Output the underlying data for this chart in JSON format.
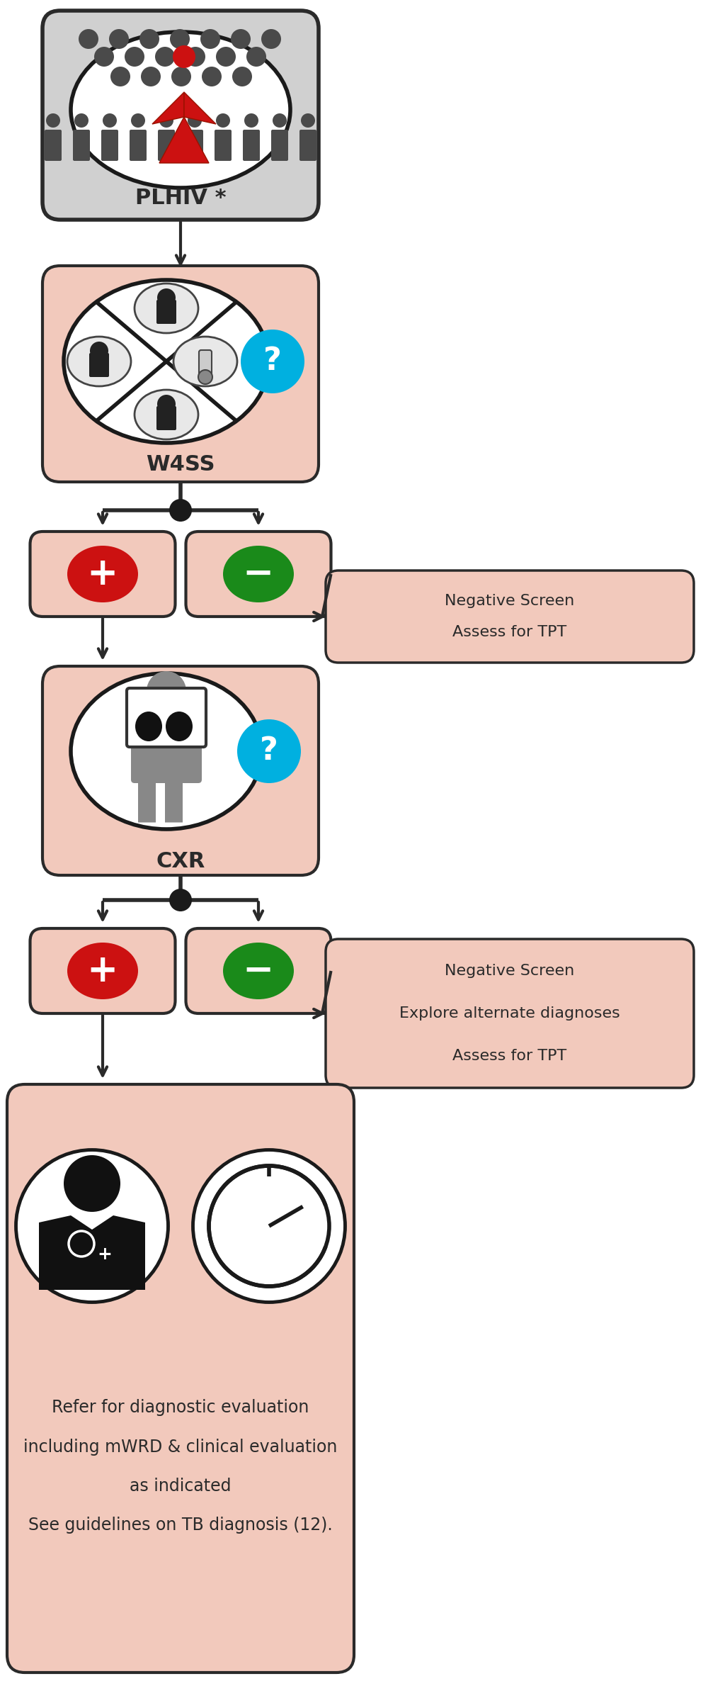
{
  "bg_color": "#ffffff",
  "salmon_box_color": "#f2c9bc",
  "gray_box_color": "#d0d0d0",
  "box_border_color": "#2a2a2a",
  "arrow_color": "#2a2a2a",
  "red_color": "#cc1111",
  "green_color": "#1a8a1a",
  "blue_color": "#00b0e0",
  "text_color": "#2a2a2a",
  "plhiv_label": "PLHIV *",
  "w4ss_label": "W4SS",
  "cxr_label": "CXR",
  "neg_screen1_line1": "Negative Screen",
  "neg_screen1_line2": "Assess for TPT",
  "neg_screen2_line1": "Negative Screen",
  "neg_screen2_line2": "Explore alternate diagnoses",
  "neg_screen2_line3": "Assess for TPT",
  "refer_line1": "Refer for diagnostic evaluation",
  "refer_line2": "including mWRD & clinical evaluation",
  "refer_line3": "as indicated",
  "refer_line4": "See guidelines on TB diagnosis (12)."
}
